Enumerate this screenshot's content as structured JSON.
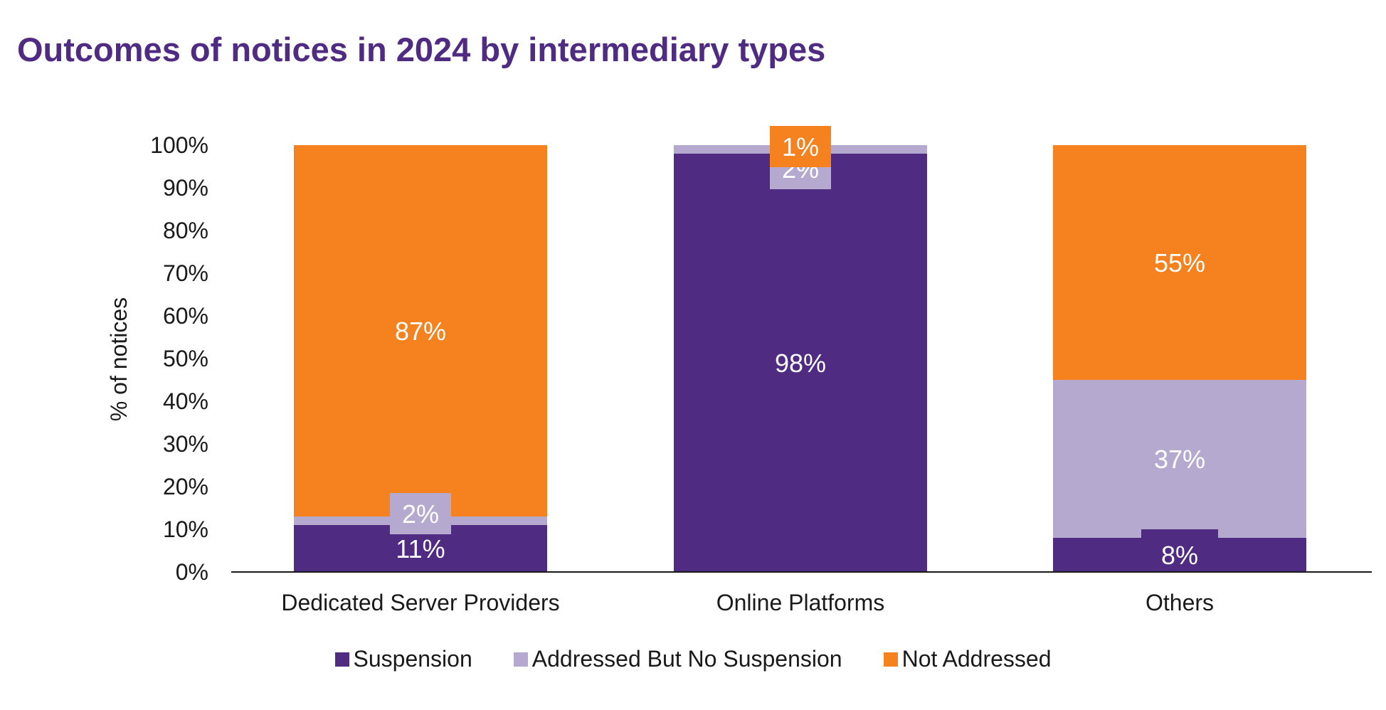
{
  "title": "Outcomes of notices in 2024 by intermediary types",
  "chart_data": {
    "type": "bar",
    "stacked": true,
    "title": "Outcomes of notices in 2024 by intermediary types",
    "categories": [
      "Dedicated Server Providers",
      "Online Platforms",
      "Others"
    ],
    "series": [
      {
        "name": "Suspension",
        "color": "#4f2b82",
        "values": [
          11,
          98,
          8
        ],
        "labels": [
          "11%",
          "98%",
          "8%"
        ]
      },
      {
        "name": "Addressed But No Suspension",
        "color": "#b5a9cf",
        "values": [
          2,
          2,
          37
        ],
        "labels": [
          "2%",
          "2%",
          "37%"
        ]
      },
      {
        "name": "Not Addressed",
        "color": "#f5811f",
        "values": [
          87,
          1,
          55
        ],
        "labels": [
          "87%",
          "1%",
          "55%"
        ]
      }
    ],
    "ylabel": "% of notices",
    "xlabel": "",
    "ylim": [
      0,
      100
    ],
    "yticks": [
      "0%",
      "10%",
      "20%",
      "30%",
      "40%",
      "50%",
      "60%",
      "70%",
      "80%",
      "90%",
      "100%"
    ],
    "grid": false,
    "legend_position": "bottom"
  }
}
